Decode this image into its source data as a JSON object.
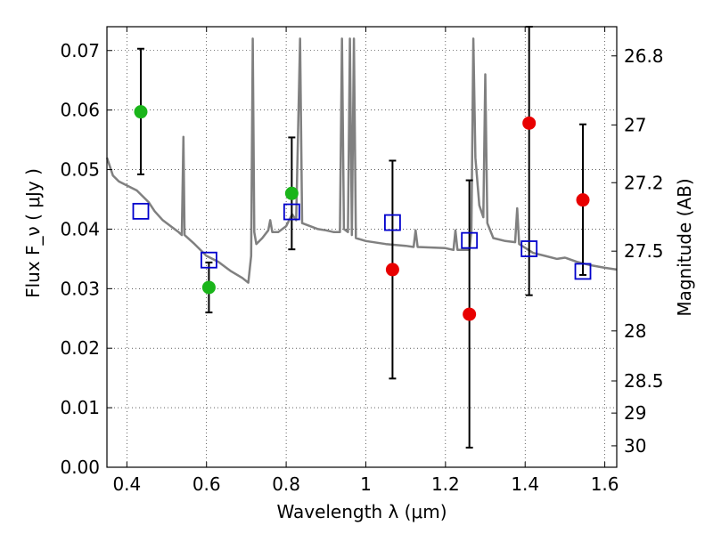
{
  "chart_data": {
    "type": "scatter",
    "xlabel": "Wavelength  λ (μm)",
    "ylabel": "Flux  F_ν  ( μJy )",
    "ylabel_right": "Magnitude (AB)",
    "xlim": [
      0.35,
      1.63
    ],
    "ylim": [
      0.0,
      0.074
    ],
    "x_ticks": [
      0.4,
      0.6,
      0.8,
      1.0,
      1.2,
      1.4,
      1.6
    ],
    "x_tick_labels": [
      "0.4",
      "0.6",
      "0.8",
      "1",
      "1.2",
      "1.4",
      "1.6"
    ],
    "y_ticks": [
      0.0,
      0.01,
      0.02,
      0.03,
      0.04,
      0.05,
      0.06,
      0.07
    ],
    "y_tick_labels": [
      "0.00",
      "0.01",
      "0.02",
      "0.03",
      "0.04",
      "0.05",
      "0.06",
      "0.07"
    ],
    "right_ticks": [
      {
        "label": "26.8",
        "flux": 0.0691
      },
      {
        "label": "27",
        "flux": 0.0575
      },
      {
        "label": "27.2",
        "flux": 0.0478
      },
      {
        "label": "27.5",
        "flux": 0.0363
      },
      {
        "label": "28",
        "flux": 0.0229
      },
      {
        "label": "28.5",
        "flux": 0.0145
      },
      {
        "label": "29",
        "flux": 0.0091
      },
      {
        "label": "30",
        "flux": 0.0036
      }
    ],
    "grid": true,
    "grid_style": "dotted",
    "colors": {
      "spectrum": "#808080",
      "detected": "#1ab51a",
      "undetected": "#e80000",
      "model": "#0000cc",
      "errorbar": "#000000"
    },
    "series": [
      {
        "marker": "circle-green",
        "points": [
          {
            "x": 0.435,
            "y": 0.0597,
            "ylo": 0.0492,
            "yhi": 0.0703
          },
          {
            "x": 0.606,
            "y": 0.0302,
            "ylo": 0.026,
            "yhi": 0.0344
          },
          {
            "x": 0.814,
            "y": 0.046,
            "ylo": 0.0366,
            "yhi": 0.0554
          }
        ]
      },
      {
        "marker": "circle-red",
        "points": [
          {
            "x": 1.067,
            "y": 0.0332,
            "ylo": 0.0149,
            "yhi": 0.0515
          },
          {
            "x": 1.26,
            "y": 0.0257,
            "ylo": 0.0033,
            "yhi": 0.0482
          },
          {
            "x": 1.41,
            "y": 0.0578,
            "ylo": 0.0289,
            "yhi": 0.074
          },
          {
            "x": 1.545,
            "y": 0.0449,
            "ylo": 0.0323,
            "yhi": 0.0576
          }
        ]
      },
      {
        "marker": "square-blue",
        "points": [
          {
            "x": 0.435,
            "y": 0.043
          },
          {
            "x": 0.606,
            "y": 0.0348
          },
          {
            "x": 0.814,
            "y": 0.0429
          },
          {
            "x": 1.067,
            "y": 0.0411
          },
          {
            "x": 1.26,
            "y": 0.0381
          },
          {
            "x": 1.41,
            "y": 0.0367
          },
          {
            "x": 1.545,
            "y": 0.0329
          }
        ]
      },
      {
        "marker": "line-gray",
        "points": [
          [
            0.35,
            0.052
          ],
          [
            0.365,
            0.049
          ],
          [
            0.38,
            0.048
          ],
          [
            0.395,
            0.0475
          ],
          [
            0.41,
            0.047
          ],
          [
            0.425,
            0.0465
          ],
          [
            0.44,
            0.0455
          ],
          [
            0.455,
            0.0445
          ],
          [
            0.47,
            0.043
          ],
          [
            0.49,
            0.0415
          ],
          [
            0.51,
            0.0405
          ],
          [
            0.53,
            0.0395
          ],
          [
            0.538,
            0.039
          ],
          [
            0.542,
            0.0555
          ],
          [
            0.545,
            0.039
          ],
          [
            0.57,
            0.0375
          ],
          [
            0.6,
            0.0355
          ],
          [
            0.63,
            0.0345
          ],
          [
            0.66,
            0.033
          ],
          [
            0.69,
            0.0318
          ],
          [
            0.705,
            0.031
          ],
          [
            0.712,
            0.0355
          ],
          [
            0.716,
            0.072
          ],
          [
            0.72,
            0.0395
          ],
          [
            0.725,
            0.0375
          ],
          [
            0.74,
            0.0385
          ],
          [
            0.755,
            0.0398
          ],
          [
            0.76,
            0.0415
          ],
          [
            0.765,
            0.0395
          ],
          [
            0.78,
            0.0395
          ],
          [
            0.8,
            0.0405
          ],
          [
            0.815,
            0.0425
          ],
          [
            0.825,
            0.0415
          ],
          [
            0.835,
            0.072
          ],
          [
            0.84,
            0.041
          ],
          [
            0.86,
            0.0405
          ],
          [
            0.88,
            0.04
          ],
          [
            0.9,
            0.0398
          ],
          [
            0.92,
            0.0395
          ],
          [
            0.935,
            0.0395
          ],
          [
            0.94,
            0.072
          ],
          [
            0.945,
            0.04
          ],
          [
            0.955,
            0.0395
          ],
          [
            0.96,
            0.072
          ],
          [
            0.965,
            0.039
          ],
          [
            0.97,
            0.072
          ],
          [
            0.975,
            0.0385
          ],
          [
            1.0,
            0.038
          ],
          [
            1.05,
            0.0375
          ],
          [
            1.1,
            0.0372
          ],
          [
            1.12,
            0.037
          ],
          [
            1.125,
            0.0398
          ],
          [
            1.13,
            0.037
          ],
          [
            1.2,
            0.0368
          ],
          [
            1.22,
            0.0365
          ],
          [
            1.225,
            0.0398
          ],
          [
            1.23,
            0.0365
          ],
          [
            1.26,
            0.0365
          ],
          [
            1.265,
            0.0395
          ],
          [
            1.27,
            0.072
          ],
          [
            1.275,
            0.052
          ],
          [
            1.285,
            0.044
          ],
          [
            1.295,
            0.042
          ],
          [
            1.3,
            0.066
          ],
          [
            1.305,
            0.041
          ],
          [
            1.32,
            0.0385
          ],
          [
            1.35,
            0.038
          ],
          [
            1.375,
            0.0378
          ],
          [
            1.38,
            0.0435
          ],
          [
            1.385,
            0.0375
          ],
          [
            1.42,
            0.036
          ],
          [
            1.45,
            0.0355
          ],
          [
            1.48,
            0.035
          ],
          [
            1.5,
            0.0352
          ],
          [
            1.53,
            0.0345
          ],
          [
            1.56,
            0.034
          ],
          [
            1.6,
            0.0335
          ],
          [
            1.63,
            0.0332
          ]
        ]
      }
    ]
  }
}
